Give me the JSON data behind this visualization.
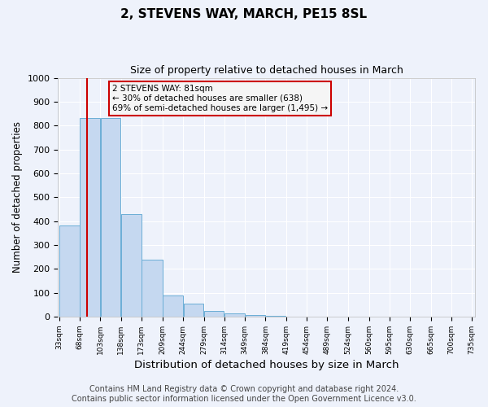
{
  "title": "2, STEVENS WAY, MARCH, PE15 8SL",
  "subtitle": "Size of property relative to detached houses in March",
  "xlabel": "Distribution of detached houses by size in March",
  "ylabel": "Number of detached properties",
  "bar_edges": [
    33,
    68,
    103,
    138,
    173,
    209,
    244,
    279,
    314,
    349,
    384,
    419,
    454,
    489,
    524,
    560,
    595,
    630,
    665,
    700,
    735
  ],
  "bar_heights": [
    380,
    830,
    830,
    430,
    240,
    90,
    55,
    25,
    15,
    5,
    2,
    0,
    0,
    0,
    0,
    0,
    0,
    0,
    0,
    0
  ],
  "bar_color": "#c5d8f0",
  "bar_edge_color": "#6baed6",
  "red_line_x": 81,
  "annotation_text": "2 STEVENS WAY: 81sqm\n← 30% of detached houses are smaller (638)\n69% of semi-detached houses are larger (1,495) →",
  "annotation_box_facecolor": "#f5f5f5",
  "annotation_box_edge": "#cc0000",
  "ylim": [
    0,
    1000
  ],
  "yticks": [
    0,
    100,
    200,
    300,
    400,
    500,
    600,
    700,
    800,
    900,
    1000
  ],
  "footer": "Contains HM Land Registry data © Crown copyright and database right 2024.\nContains public sector information licensed under the Open Government Licence v3.0.",
  "bg_color": "#eef2fb",
  "grid_color": "#ffffff",
  "title_fontsize": 11,
  "subtitle_fontsize": 9,
  "xlabel_fontsize": 9.5,
  "ylabel_fontsize": 8.5,
  "footer_fontsize": 7
}
